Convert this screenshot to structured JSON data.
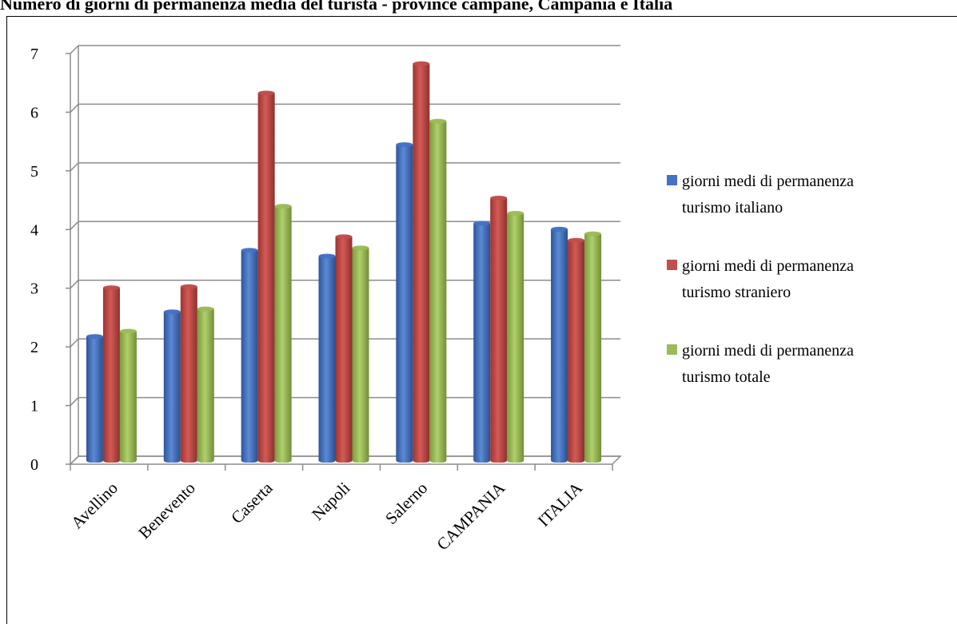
{
  "chart_data": {
    "type": "bar",
    "title": "Numero di giorni di permanenza media del turista - province campane, Campania e Italia",
    "categories": [
      "Avellino",
      "Benevento",
      "Caserta",
      "Napoli",
      "Salerno",
      "CAMPANIA",
      "ITALIA"
    ],
    "series": [
      {
        "name": "giorni medi di permanenza turismo italiano",
        "values": [
          2.15,
          2.57,
          3.62,
          3.52,
          5.42,
          4.08,
          3.98
        ]
      },
      {
        "name": "giorni medi di permanenza turismo straniero",
        "values": [
          2.98,
          3.0,
          6.3,
          3.85,
          6.8,
          4.51,
          3.79
        ]
      },
      {
        "name": "giorni medi di permanenza turismo totale",
        "values": [
          2.24,
          2.62,
          4.37,
          3.66,
          5.82,
          4.25,
          3.9
        ]
      }
    ],
    "colors": [
      "#4472c4",
      "#c0504d",
      "#9bbb59"
    ],
    "ylim": [
      0,
      7
    ],
    "yticks": [
      0,
      1,
      2,
      3,
      4,
      5,
      6,
      7
    ],
    "grid": true,
    "legend": "right",
    "legend_lines": [
      [
        "giorni medi di permanenza",
        "turismo italiano"
      ],
      [
        "giorni medi di permanenza",
        "turismo straniero"
      ],
      [
        "giorni medi di permanenza",
        "turismo totale"
      ]
    ]
  }
}
